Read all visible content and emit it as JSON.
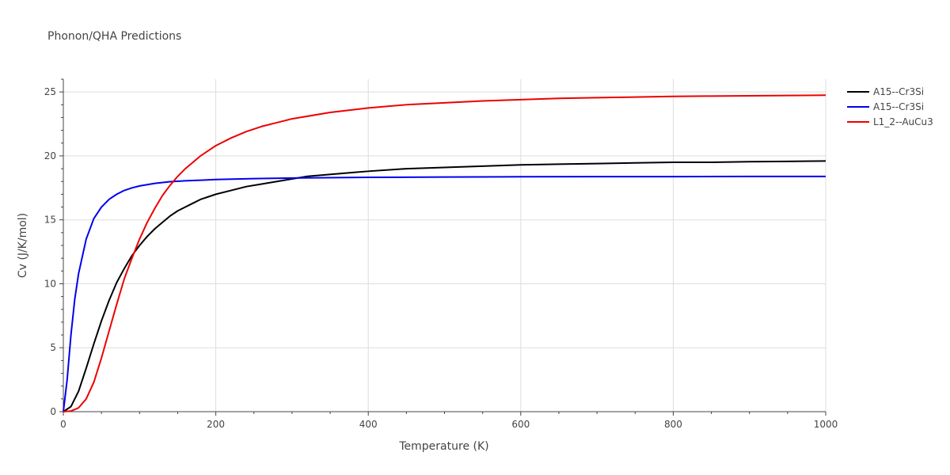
{
  "chart_data": {
    "type": "line",
    "title": "Phonon/QHA Predictions",
    "xlabel": "Temperature (K)",
    "ylabel": "Cv (J/K/mol)",
    "xlim": [
      0,
      1000
    ],
    "ylim": [
      0,
      26
    ],
    "xticks": [
      0,
      200,
      400,
      600,
      800,
      1000
    ],
    "yticks": [
      0,
      5,
      10,
      15,
      20,
      25
    ],
    "grid": true,
    "legend_position": "top-right",
    "series": [
      {
        "name": "A15--Cr3Si",
        "color": "#000000",
        "x": [
          0,
          10,
          20,
          30,
          40,
          50,
          60,
          70,
          80,
          90,
          100,
          110,
          120,
          130,
          140,
          150,
          160,
          170,
          180,
          190,
          200,
          220,
          240,
          260,
          280,
          300,
          320,
          340,
          360,
          380,
          400,
          450,
          500,
          550,
          600,
          650,
          700,
          750,
          800,
          850,
          900,
          950,
          1000
        ],
        "y": [
          0,
          0.4,
          1.6,
          3.4,
          5.3,
          7.1,
          8.7,
          10.1,
          11.2,
          12.2,
          13.0,
          13.7,
          14.3,
          14.8,
          15.3,
          15.7,
          16.0,
          16.3,
          16.6,
          16.8,
          17.0,
          17.3,
          17.6,
          17.8,
          18.0,
          18.2,
          18.4,
          18.5,
          18.6,
          18.7,
          18.8,
          19.0,
          19.1,
          19.2,
          19.3,
          19.35,
          19.4,
          19.45,
          19.5,
          19.5,
          19.55,
          19.57,
          19.6
        ]
      },
      {
        "name": "A15--Cr3Si",
        "color": "#0000ee",
        "x": [
          0,
          5,
          10,
          15,
          20,
          30,
          40,
          50,
          60,
          70,
          80,
          90,
          100,
          120,
          140,
          160,
          180,
          200,
          250,
          300,
          400,
          500,
          600,
          700,
          800,
          900,
          1000
        ],
        "y": [
          0,
          2.5,
          6.0,
          8.8,
          10.8,
          13.5,
          15.1,
          16.0,
          16.6,
          17.0,
          17.3,
          17.5,
          17.65,
          17.85,
          17.98,
          18.05,
          18.1,
          18.15,
          18.22,
          18.27,
          18.32,
          18.35,
          18.37,
          18.38,
          18.38,
          18.39,
          18.39
        ]
      },
      {
        "name": "L1_2--AuCu3",
        "color": "#ee0000",
        "x": [
          0,
          10,
          20,
          30,
          40,
          50,
          60,
          70,
          80,
          90,
          100,
          110,
          120,
          130,
          140,
          150,
          160,
          170,
          180,
          190,
          200,
          220,
          240,
          260,
          280,
          300,
          350,
          400,
          450,
          500,
          550,
          600,
          650,
          700,
          750,
          800,
          850,
          900,
          950,
          1000
        ],
        "y": [
          0,
          0.05,
          0.3,
          1.0,
          2.3,
          4.2,
          6.3,
          8.4,
          10.4,
          12.0,
          13.5,
          14.8,
          15.9,
          16.9,
          17.7,
          18.4,
          19.0,
          19.5,
          20.0,
          20.4,
          20.8,
          21.4,
          21.9,
          22.3,
          22.6,
          22.9,
          23.4,
          23.75,
          24.0,
          24.15,
          24.3,
          24.4,
          24.5,
          24.55,
          24.6,
          24.65,
          24.68,
          24.7,
          24.72,
          24.75
        ]
      }
    ]
  }
}
